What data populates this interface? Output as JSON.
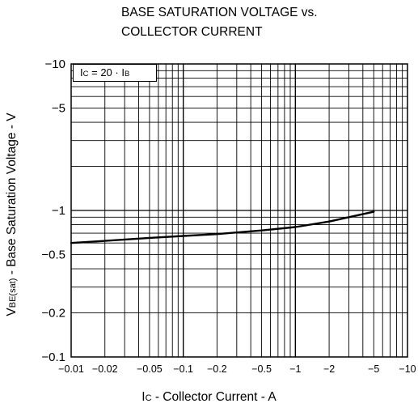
{
  "chart_data": {
    "type": "line",
    "title_lines": [
      "BASE SATURATION VOLTAGE vs.",
      "COLLECTOR CURRENT"
    ],
    "xlabel": {
      "main": "I",
      "sub": "C",
      "rest": " - Collector Current - A"
    },
    "ylabel": {
      "main": "V",
      "sub": "BE(sat)",
      "rest": " - Base Saturation Voltage - V"
    },
    "x_scale": "log",
    "y_scale": "log",
    "xlim": [
      -0.01,
      -10
    ],
    "ylim": [
      -0.1,
      -10
    ],
    "x_ticks": [
      {
        "value": -0.01,
        "label": "−0.01"
      },
      {
        "value": -0.02,
        "label": "−0.02"
      },
      {
        "value": -0.05,
        "label": "−0.05"
      },
      {
        "value": -0.1,
        "label": "−0.1"
      },
      {
        "value": -0.2,
        "label": "−0.2"
      },
      {
        "value": -0.5,
        "label": "−0.5"
      },
      {
        "value": -1,
        "label": "−1"
      },
      {
        "value": -2,
        "label": "−2"
      },
      {
        "value": -5,
        "label": "−5"
      },
      {
        "value": -10,
        "label": "−10"
      }
    ],
    "y_ticks": [
      {
        "value": -10,
        "label": "−10"
      },
      {
        "value": -5,
        "label": "−5"
      },
      {
        "value": -1,
        "label": "−1"
      },
      {
        "value": -0.5,
        "label": "−0.5"
      },
      {
        "value": -0.2,
        "label": "−0.2"
      },
      {
        "value": -0.1,
        "label": "−0.1"
      }
    ],
    "grid": true,
    "annotation": {
      "p1": "I",
      "s1": "C",
      "mid": " = 20 · I",
      "s2": "B"
    },
    "series": [
      {
        "color": "#000000",
        "x": [
          -0.01,
          -0.02,
          -0.05,
          -0.1,
          -0.2,
          -0.5,
          -1,
          -2,
          -5
        ],
        "y": [
          -0.6,
          -0.62,
          -0.65,
          -0.67,
          -0.69,
          -0.73,
          -0.77,
          -0.84,
          -0.98
        ]
      }
    ]
  }
}
